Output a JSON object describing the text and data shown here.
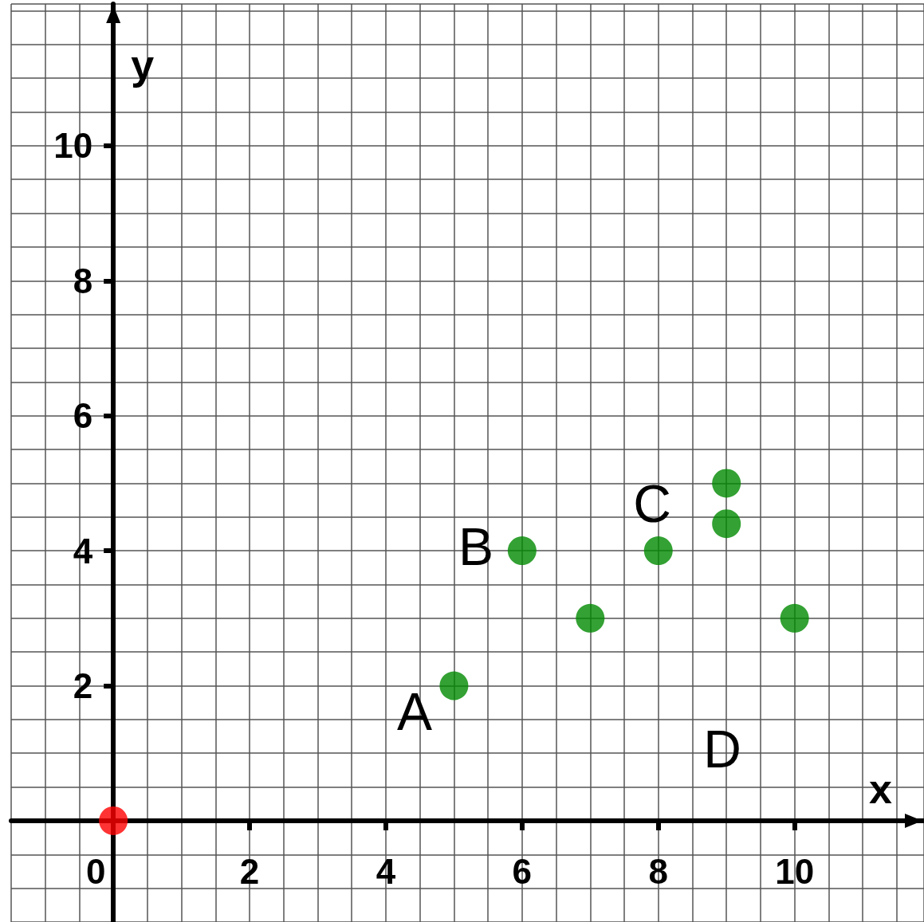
{
  "chart_data": {
    "type": "scatter",
    "xlabel": "x",
    "ylabel": "y",
    "xlim": [
      -1.5,
      11.9
    ],
    "ylim": [
      -1.5,
      12.1
    ],
    "xticks": [
      0,
      2,
      4,
      6,
      8,
      10
    ],
    "yticks": [
      {
        "value": 0,
        "label": null
      },
      2,
      4,
      6,
      8,
      10
    ],
    "grid": true,
    "marker": "circle",
    "series": [
      {
        "color": "#008a00",
        "x": [
          5,
          6,
          7,
          8,
          9,
          9,
          10
        ],
        "values": [
          2,
          4,
          3,
          4,
          5,
          4.4,
          3
        ]
      },
      {
        "color": "#ff0000",
        "x": [
          0
        ],
        "values": [
          0
        ]
      }
    ],
    "annotations": [
      "A",
      "B",
      "C",
      "D"
    ]
  }
}
